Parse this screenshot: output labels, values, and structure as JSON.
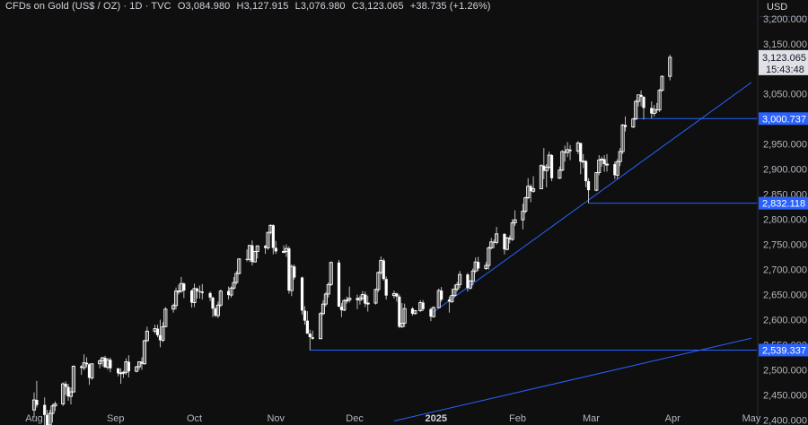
{
  "header": {
    "symbol": "CFDs on Gold (US$ / OZ) · 1D · TVC",
    "open_label": "O",
    "open": "3,084.980",
    "high_label": "H",
    "high": "3,127.915",
    "low_label": "L",
    "low": "3,076.980",
    "close_label": "C",
    "close": "3,123.065",
    "change": "+38.735 (+1.26%)"
  },
  "currency": "USD",
  "colors": {
    "background": "#0f0f0f",
    "candle": "#ffffff",
    "wick": "#bcbcbc",
    "line": "#2962ff",
    "axis_text": "#b2b5be"
  },
  "chart_data": {
    "type": "candlestick",
    "y_ticks": [
      "2,400.000",
      "2,450.000",
      "2,500.000",
      "2,550.000",
      "2,600.000",
      "2,650.000",
      "2,700.000",
      "2,750.000",
      "2,800.000",
      "2,850.000",
      "2,900.000",
      "2,950.000",
      "3,000.000",
      "3,050.000",
      "3,100.000",
      "3,150.000"
    ],
    "y_tick_values": [
      2400,
      2450,
      2500,
      2550,
      2600,
      2650,
      2700,
      2750,
      2800,
      2850,
      2900,
      2950,
      3000,
      3050,
      3100,
      3150
    ],
    "top_partial_tick": "3,200.000",
    "ylim": [
      2390,
      3205
    ],
    "x_ticks": [
      {
        "label": "Aug",
        "date": "2024-08-01"
      },
      {
        "label": "Sep",
        "date": "2024-09-01"
      },
      {
        "label": "Oct",
        "date": "2024-10-01"
      },
      {
        "label": "Nov",
        "date": "2024-11-01"
      },
      {
        "label": "Dec",
        "date": "2024-12-01"
      },
      {
        "label": "2025",
        "date": "2025-01-01",
        "bold": true
      },
      {
        "label": "Feb",
        "date": "2025-02-01"
      },
      {
        "label": "Mar",
        "date": "2025-03-01"
      },
      {
        "label": "Apr",
        "date": "2025-04-01"
      },
      {
        "label": "May",
        "date": "2025-05-01"
      }
    ],
    "xlim": [
      "2024-08-01",
      "2025-05-01"
    ],
    "last_price": {
      "value": 3123.065,
      "label": "3,123.065",
      "countdown": "15:43:48"
    },
    "price_lines": [
      {
        "value": 3000.737,
        "label": "3,000.737",
        "start": "2025-03-17"
      },
      {
        "value": 2832.118,
        "label": "2,832.118",
        "start": "2025-02-28"
      },
      {
        "value": 2539.337,
        "label": "2,539.337",
        "start": "2024-11-14"
      }
    ],
    "trend_lines": [
      {
        "points": [
          [
            "2024-12-31",
            2615
          ],
          [
            "2025-05-01",
            3073
          ]
        ]
      },
      {
        "points": [
          [
            "2024-12-16",
            2398
          ],
          [
            "2025-05-01",
            2563
          ]
        ]
      }
    ],
    "candles": [
      [
        "2024-08-01",
        2420,
        2455,
        2405,
        2440
      ],
      [
        "2024-08-02",
        2440,
        2478,
        2425,
        2430
      ],
      [
        "2024-08-05",
        2430,
        2445,
        2365,
        2410
      ],
      [
        "2024-08-06",
        2410,
        2420,
        2385,
        2390
      ],
      [
        "2024-08-07",
        2390,
        2420,
        2385,
        2413
      ],
      [
        "2024-08-08",
        2413,
        2432,
        2395,
        2428
      ],
      [
        "2024-08-09",
        2428,
        2437,
        2418,
        2432
      ],
      [
        "2024-08-12",
        2432,
        2475,
        2428,
        2472
      ],
      [
        "2024-08-13",
        2472,
        2477,
        2450,
        2466
      ],
      [
        "2024-08-14",
        2466,
        2472,
        2438,
        2447
      ],
      [
        "2024-08-15",
        2447,
        2465,
        2431,
        2456
      ],
      [
        "2024-08-16",
        2456,
        2509,
        2454,
        2507
      ],
      [
        "2024-08-19",
        2507,
        2509,
        2490,
        2504
      ],
      [
        "2024-08-20",
        2504,
        2531,
        2499,
        2514
      ],
      [
        "2024-08-21",
        2514,
        2525,
        2505,
        2511
      ],
      [
        "2024-08-22",
        2511,
        2513,
        2470,
        2484
      ],
      [
        "2024-08-23",
        2484,
        2512,
        2480,
        2512
      ],
      [
        "2024-08-26",
        2512,
        2521,
        2503,
        2518
      ],
      [
        "2024-08-27",
        2518,
        2526,
        2507,
        2524
      ],
      [
        "2024-08-28",
        2524,
        2528,
        2504,
        2505
      ],
      [
        "2024-08-29",
        2505,
        2524,
        2500,
        2520
      ],
      [
        "2024-08-30",
        2520,
        2524,
        2495,
        2503
      ],
      [
        "2024-09-02",
        2503,
        2503,
        2487,
        2493
      ],
      [
        "2024-09-03",
        2493,
        2503,
        2472,
        2494
      ],
      [
        "2024-09-04",
        2494,
        2498,
        2484,
        2495
      ],
      [
        "2024-09-05",
        2495,
        2523,
        2490,
        2516
      ],
      [
        "2024-09-06",
        2516,
        2529,
        2485,
        2497
      ],
      [
        "2024-09-09",
        2497,
        2508,
        2495,
        2506
      ],
      [
        "2024-09-10",
        2506,
        2516,
        2500,
        2516
      ],
      [
        "2024-09-11",
        2516,
        2525,
        2500,
        2512
      ],
      [
        "2024-09-12",
        2512,
        2560,
        2510,
        2558
      ],
      [
        "2024-09-13",
        2558,
        2586,
        2556,
        2577
      ],
      [
        "2024-09-16",
        2577,
        2590,
        2572,
        2582
      ],
      [
        "2024-09-17",
        2582,
        2590,
        2565,
        2569
      ],
      [
        "2024-09-18",
        2569,
        2600,
        2545,
        2559
      ],
      [
        "2024-09-19",
        2559,
        2595,
        2555,
        2586
      ],
      [
        "2024-09-20",
        2586,
        2625,
        2585,
        2621
      ],
      [
        "2024-09-23",
        2621,
        2632,
        2614,
        2628
      ],
      [
        "2024-09-24",
        2628,
        2664,
        2620,
        2657
      ],
      [
        "2024-09-25",
        2657,
        2670,
        2650,
        2657
      ],
      [
        "2024-09-26",
        2657,
        2685,
        2653,
        2672
      ],
      [
        "2024-09-27",
        2672,
        2674,
        2643,
        2658
      ],
      [
        "2024-09-30",
        2658,
        2660,
        2624,
        2634
      ],
      [
        "2024-10-01",
        2634,
        2672,
        2625,
        2662
      ],
      [
        "2024-10-02",
        2662,
        2664,
        2642,
        2657
      ],
      [
        "2024-10-03",
        2657,
        2668,
        2642,
        2656
      ],
      [
        "2024-10-04",
        2656,
        2671,
        2640,
        2653
      ],
      [
        "2024-10-07",
        2653,
        2656,
        2637,
        2644
      ],
      [
        "2024-10-08",
        2644,
        2646,
        2605,
        2622
      ],
      [
        "2024-10-09",
        2622,
        2625,
        2605,
        2608
      ],
      [
        "2024-10-10",
        2608,
        2636,
        2603,
        2629
      ],
      [
        "2024-10-11",
        2629,
        2660,
        2625,
        2657
      ],
      [
        "2024-10-14",
        2657,
        2666,
        2640,
        2649
      ],
      [
        "2024-10-15",
        2649,
        2666,
        2644,
        2663
      ],
      [
        "2024-10-16",
        2663,
        2685,
        2660,
        2674
      ],
      [
        "2024-10-17",
        2674,
        2697,
        2670,
        2692
      ],
      [
        "2024-10-18",
        2692,
        2722,
        2690,
        2721
      ],
      [
        "2024-10-21",
        2721,
        2740,
        2716,
        2720
      ],
      [
        "2024-10-22",
        2720,
        2748,
        2715,
        2748
      ],
      [
        "2024-10-23",
        2748,
        2758,
        2708,
        2715
      ],
      [
        "2024-10-24",
        2715,
        2737,
        2715,
        2736
      ],
      [
        "2024-10-25",
        2736,
        2748,
        2722,
        2747
      ],
      [
        "2024-10-28",
        2747,
        2749,
        2731,
        2743
      ],
      [
        "2024-10-29",
        2743,
        2775,
        2739,
        2774
      ],
      [
        "2024-10-30",
        2774,
        2790,
        2770,
        2788
      ],
      [
        "2024-10-31",
        2788,
        2790,
        2730,
        2743
      ],
      [
        "2024-11-01",
        2743,
        2757,
        2731,
        2736
      ],
      [
        "2024-11-04",
        2736,
        2748,
        2732,
        2736
      ],
      [
        "2024-11-05",
        2736,
        2750,
        2725,
        2742
      ],
      [
        "2024-11-06",
        2742,
        2746,
        2652,
        2658
      ],
      [
        "2024-11-07",
        2658,
        2710,
        2647,
        2706
      ],
      [
        "2024-11-08",
        2706,
        2710,
        2680,
        2684
      ],
      [
        "2024-11-11",
        2684,
        2686,
        2610,
        2618
      ],
      [
        "2024-11-12",
        2618,
        2627,
        2590,
        2598
      ],
      [
        "2024-11-13",
        2598,
        2617,
        2580,
        2572
      ],
      [
        "2024-11-14",
        2572,
        2580,
        2539,
        2565
      ],
      [
        "2024-11-15",
        2565,
        2578,
        2560,
        2562
      ],
      [
        "2024-11-18",
        2562,
        2615,
        2562,
        2612
      ],
      [
        "2024-11-19",
        2612,
        2639,
        2609,
        2631
      ],
      [
        "2024-11-20",
        2631,
        2655,
        2626,
        2651
      ],
      [
        "2024-11-21",
        2651,
        2674,
        2644,
        2670
      ],
      [
        "2024-11-22",
        2670,
        2716,
        2667,
        2714
      ],
      [
        "2024-11-25",
        2714,
        2719,
        2625,
        2626
      ],
      [
        "2024-11-26",
        2626,
        2633,
        2605,
        2619
      ],
      [
        "2024-11-27",
        2619,
        2641,
        2617,
        2638
      ],
      [
        "2024-11-28",
        2638,
        2646,
        2632,
        2639
      ],
      [
        "2024-11-29",
        2639,
        2666,
        2634,
        2643
      ],
      [
        "2024-12-02",
        2643,
        2650,
        2621,
        2639
      ],
      [
        "2024-12-03",
        2639,
        2648,
        2630,
        2643
      ],
      [
        "2024-12-04",
        2643,
        2657,
        2638,
        2650
      ],
      [
        "2024-12-05",
        2650,
        2656,
        2625,
        2632
      ],
      [
        "2024-12-06",
        2632,
        2648,
        2616,
        2633
      ],
      [
        "2024-12-09",
        2633,
        2662,
        2630,
        2660
      ],
      [
        "2024-12-10",
        2660,
        2696,
        2655,
        2694
      ],
      [
        "2024-12-11",
        2694,
        2726,
        2690,
        2718
      ],
      [
        "2024-12-12",
        2718,
        2722,
        2678,
        2681
      ],
      [
        "2024-12-13",
        2681,
        2686,
        2640,
        2648
      ],
      [
        "2024-12-16",
        2648,
        2658,
        2642,
        2652
      ],
      [
        "2024-12-17",
        2652,
        2654,
        2636,
        2646
      ],
      [
        "2024-12-18",
        2646,
        2650,
        2583,
        2586
      ],
      [
        "2024-12-19",
        2586,
        2633,
        2583,
        2593
      ],
      [
        "2024-12-20",
        2593,
        2632,
        2585,
        2622
      ],
      [
        "2024-12-23",
        2622,
        2625,
        2608,
        2612
      ],
      [
        "2024-12-24",
        2612,
        2619,
        2610,
        2618
      ],
      [
        "2024-12-26",
        2618,
        2639,
        2615,
        2634
      ],
      [
        "2024-12-27",
        2634,
        2639,
        2617,
        2621
      ],
      [
        "2024-12-30",
        2621,
        2624,
        2597,
        2606
      ],
      [
        "2024-12-31",
        2606,
        2627,
        2604,
        2624
      ],
      [
        "2025-01-02",
        2624,
        2662,
        2623,
        2658
      ],
      [
        "2025-01-03",
        2658,
        2665,
        2636,
        2640
      ],
      [
        "2025-01-06",
        2640,
        2646,
        2614,
        2636
      ],
      [
        "2025-01-07",
        2636,
        2662,
        2633,
        2648
      ],
      [
        "2025-01-08",
        2648,
        2670,
        2645,
        2661
      ],
      [
        "2025-01-09",
        2661,
        2675,
        2656,
        2670
      ],
      [
        "2025-01-10",
        2670,
        2697,
        2663,
        2690
      ],
      [
        "2025-01-13",
        2690,
        2693,
        2656,
        2663
      ],
      [
        "2025-01-14",
        2663,
        2679,
        2660,
        2677
      ],
      [
        "2025-01-15",
        2677,
        2702,
        2668,
        2697
      ],
      [
        "2025-01-16",
        2697,
        2724,
        2693,
        2715
      ],
      [
        "2025-01-17",
        2715,
        2725,
        2697,
        2702
      ],
      [
        "2025-01-20",
        2702,
        2715,
        2699,
        2708
      ],
      [
        "2025-01-21",
        2708,
        2746,
        2700,
        2743
      ],
      [
        "2025-01-22",
        2743,
        2763,
        2740,
        2755
      ],
      [
        "2025-01-23",
        2755,
        2760,
        2742,
        2754
      ],
      [
        "2025-01-24",
        2754,
        2785,
        2750,
        2771
      ],
      [
        "2025-01-27",
        2771,
        2772,
        2730,
        2740
      ],
      [
        "2025-01-28",
        2740,
        2765,
        2738,
        2763
      ],
      [
        "2025-01-29",
        2763,
        2768,
        2752,
        2760
      ],
      [
        "2025-01-30",
        2760,
        2800,
        2757,
        2793
      ],
      [
        "2025-01-31",
        2793,
        2818,
        2787,
        2799
      ],
      [
        "2025-02-03",
        2799,
        2831,
        2780,
        2816
      ],
      [
        "2025-02-04",
        2816,
        2845,
        2812,
        2843
      ],
      [
        "2025-02-05",
        2843,
        2882,
        2840,
        2866
      ],
      [
        "2025-02-06",
        2866,
        2870,
        2834,
        2856
      ],
      [
        "2025-02-07",
        2856,
        2886,
        2853,
        2861
      ],
      [
        "2025-02-10",
        2861,
        2910,
        2860,
        2907
      ],
      [
        "2025-02-11",
        2907,
        2942,
        2880,
        2897
      ],
      [
        "2025-02-12",
        2897,
        2910,
        2864,
        2904
      ],
      [
        "2025-02-13",
        2904,
        2935,
        2900,
        2928
      ],
      [
        "2025-02-14",
        2928,
        2930,
        2876,
        2882
      ],
      [
        "2025-02-17",
        2882,
        2905,
        2880,
        2898
      ],
      [
        "2025-02-18",
        2898,
        2938,
        2896,
        2935
      ],
      [
        "2025-02-19",
        2935,
        2947,
        2915,
        2933
      ],
      [
        "2025-02-20",
        2933,
        2954,
        2924,
        2939
      ],
      [
        "2025-02-21",
        2939,
        2948,
        2918,
        2936
      ],
      [
        "2025-02-24",
        2936,
        2956,
        2930,
        2952
      ],
      [
        "2025-02-25",
        2952,
        2953,
        2890,
        2915
      ],
      [
        "2025-02-26",
        2915,
        2930,
        2902,
        2916
      ],
      [
        "2025-02-27",
        2916,
        2918,
        2864,
        2876
      ],
      [
        "2025-02-28",
        2876,
        2882,
        2832,
        2858
      ],
      [
        "2025-03-03",
        2858,
        2894,
        2856,
        2893
      ],
      [
        "2025-03-04",
        2893,
        2928,
        2888,
        2918
      ],
      [
        "2025-03-05",
        2918,
        2925,
        2905,
        2920
      ],
      [
        "2025-03-06",
        2920,
        2928,
        2895,
        2910
      ],
      [
        "2025-03-07",
        2910,
        2930,
        2895,
        2910
      ],
      [
        "2025-03-10",
        2910,
        2915,
        2880,
        2888
      ],
      [
        "2025-03-11",
        2888,
        2920,
        2880,
        2915
      ],
      [
        "2025-03-12",
        2915,
        2942,
        2906,
        2935
      ],
      [
        "2025-03-13",
        2935,
        2990,
        2930,
        2988
      ],
      [
        "2025-03-14",
        2988,
        3005,
        2975,
        2984
      ],
      [
        "2025-03-17",
        2984,
        3002,
        2982,
        3000
      ],
      [
        "2025-03-18",
        3000,
        3038,
        2998,
        3035
      ],
      [
        "2025-03-19",
        3035,
        3045,
        3025,
        3048
      ],
      [
        "2025-03-20",
        3048,
        3057,
        3025,
        3044
      ],
      [
        "2025-03-21",
        3044,
        3046,
        2999,
        3022
      ],
      [
        "2025-03-24",
        3022,
        3035,
        3001,
        3011
      ],
      [
        "2025-03-25",
        3011,
        3028,
        3005,
        3019
      ],
      [
        "2025-03-26",
        3019,
        3032,
        3012,
        3018
      ],
      [
        "2025-03-27",
        3018,
        3060,
        3014,
        3057
      ],
      [
        "2025-03-28",
        3057,
        3087,
        3055,
        3085
      ],
      [
        "2025-03-31",
        3085,
        3128,
        3077,
        3123
      ]
    ]
  }
}
